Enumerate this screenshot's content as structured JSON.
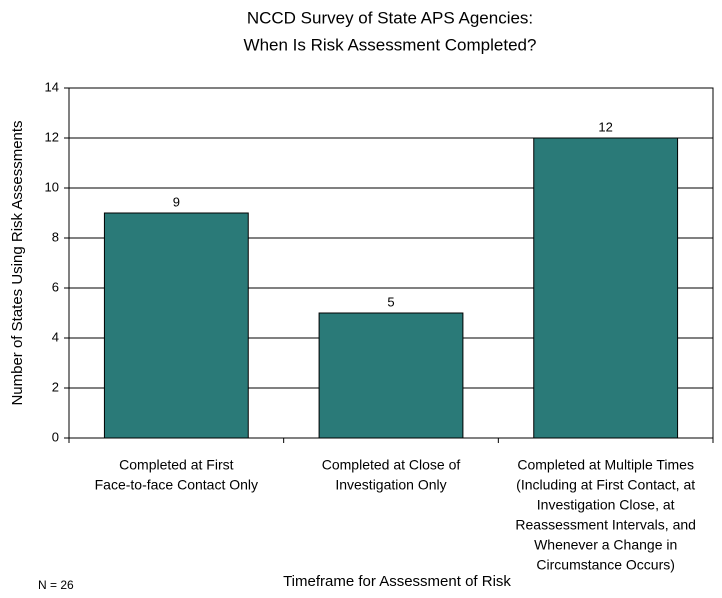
{
  "chart_data": {
    "type": "bar",
    "title": [
      "NCCD Survey of State APS Agencies:",
      "When Is Risk Assessment Completed?"
    ],
    "categories": [
      [
        "Completed at First",
        "Face-to-face Contact Only"
      ],
      [
        "Completed at Close of",
        "Investigation Only"
      ],
      [
        "Completed at Multiple Times",
        "(Including at First Contact, at",
        "Investigation Close, at",
        "Reassessment Intervals, and",
        "Whenever a Change in",
        "Circumstance Occurs)"
      ]
    ],
    "values": [
      9,
      5,
      12
    ],
    "color": "#2a7a78",
    "ylim": [
      0,
      14
    ],
    "yticks": [
      0,
      2,
      4,
      6,
      8,
      10,
      12,
      14
    ],
    "grid": true,
    "xlabel": "Timeframe for Assessment of Risk",
    "ylabel": "Number of States Using Risk Assessments",
    "annotation": "N = 26"
  }
}
